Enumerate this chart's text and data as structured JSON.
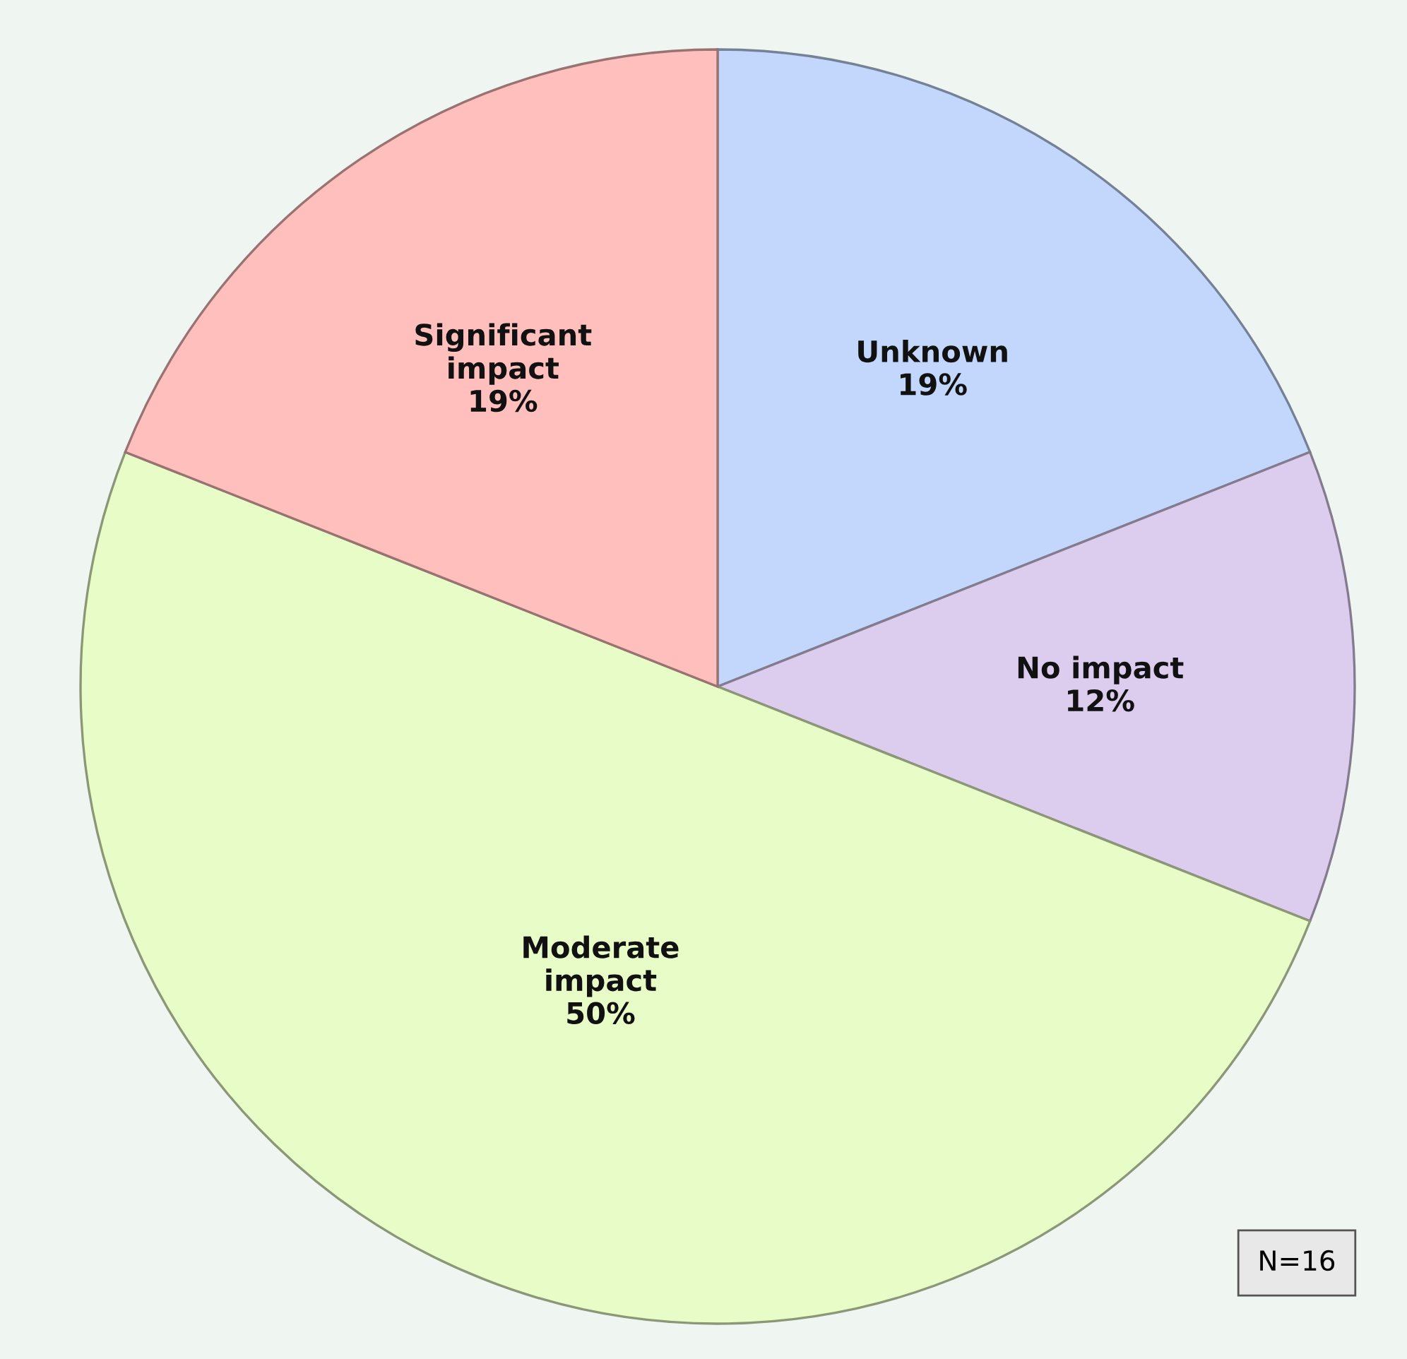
{
  "chart_data": {
    "type": "pie",
    "categories": [
      "Unknown",
      "No impact",
      "Moderate impact",
      "Significant impact"
    ],
    "values": [
      19,
      12,
      50,
      19
    ],
    "value_labels": [
      "19%",
      "12%",
      "50%",
      "19%"
    ],
    "colors": [
      "#c2d7fb",
      "#dccdee",
      "#e7fcc6",
      "#ffbfbd"
    ],
    "annotations": [
      "N=16"
    ]
  }
}
